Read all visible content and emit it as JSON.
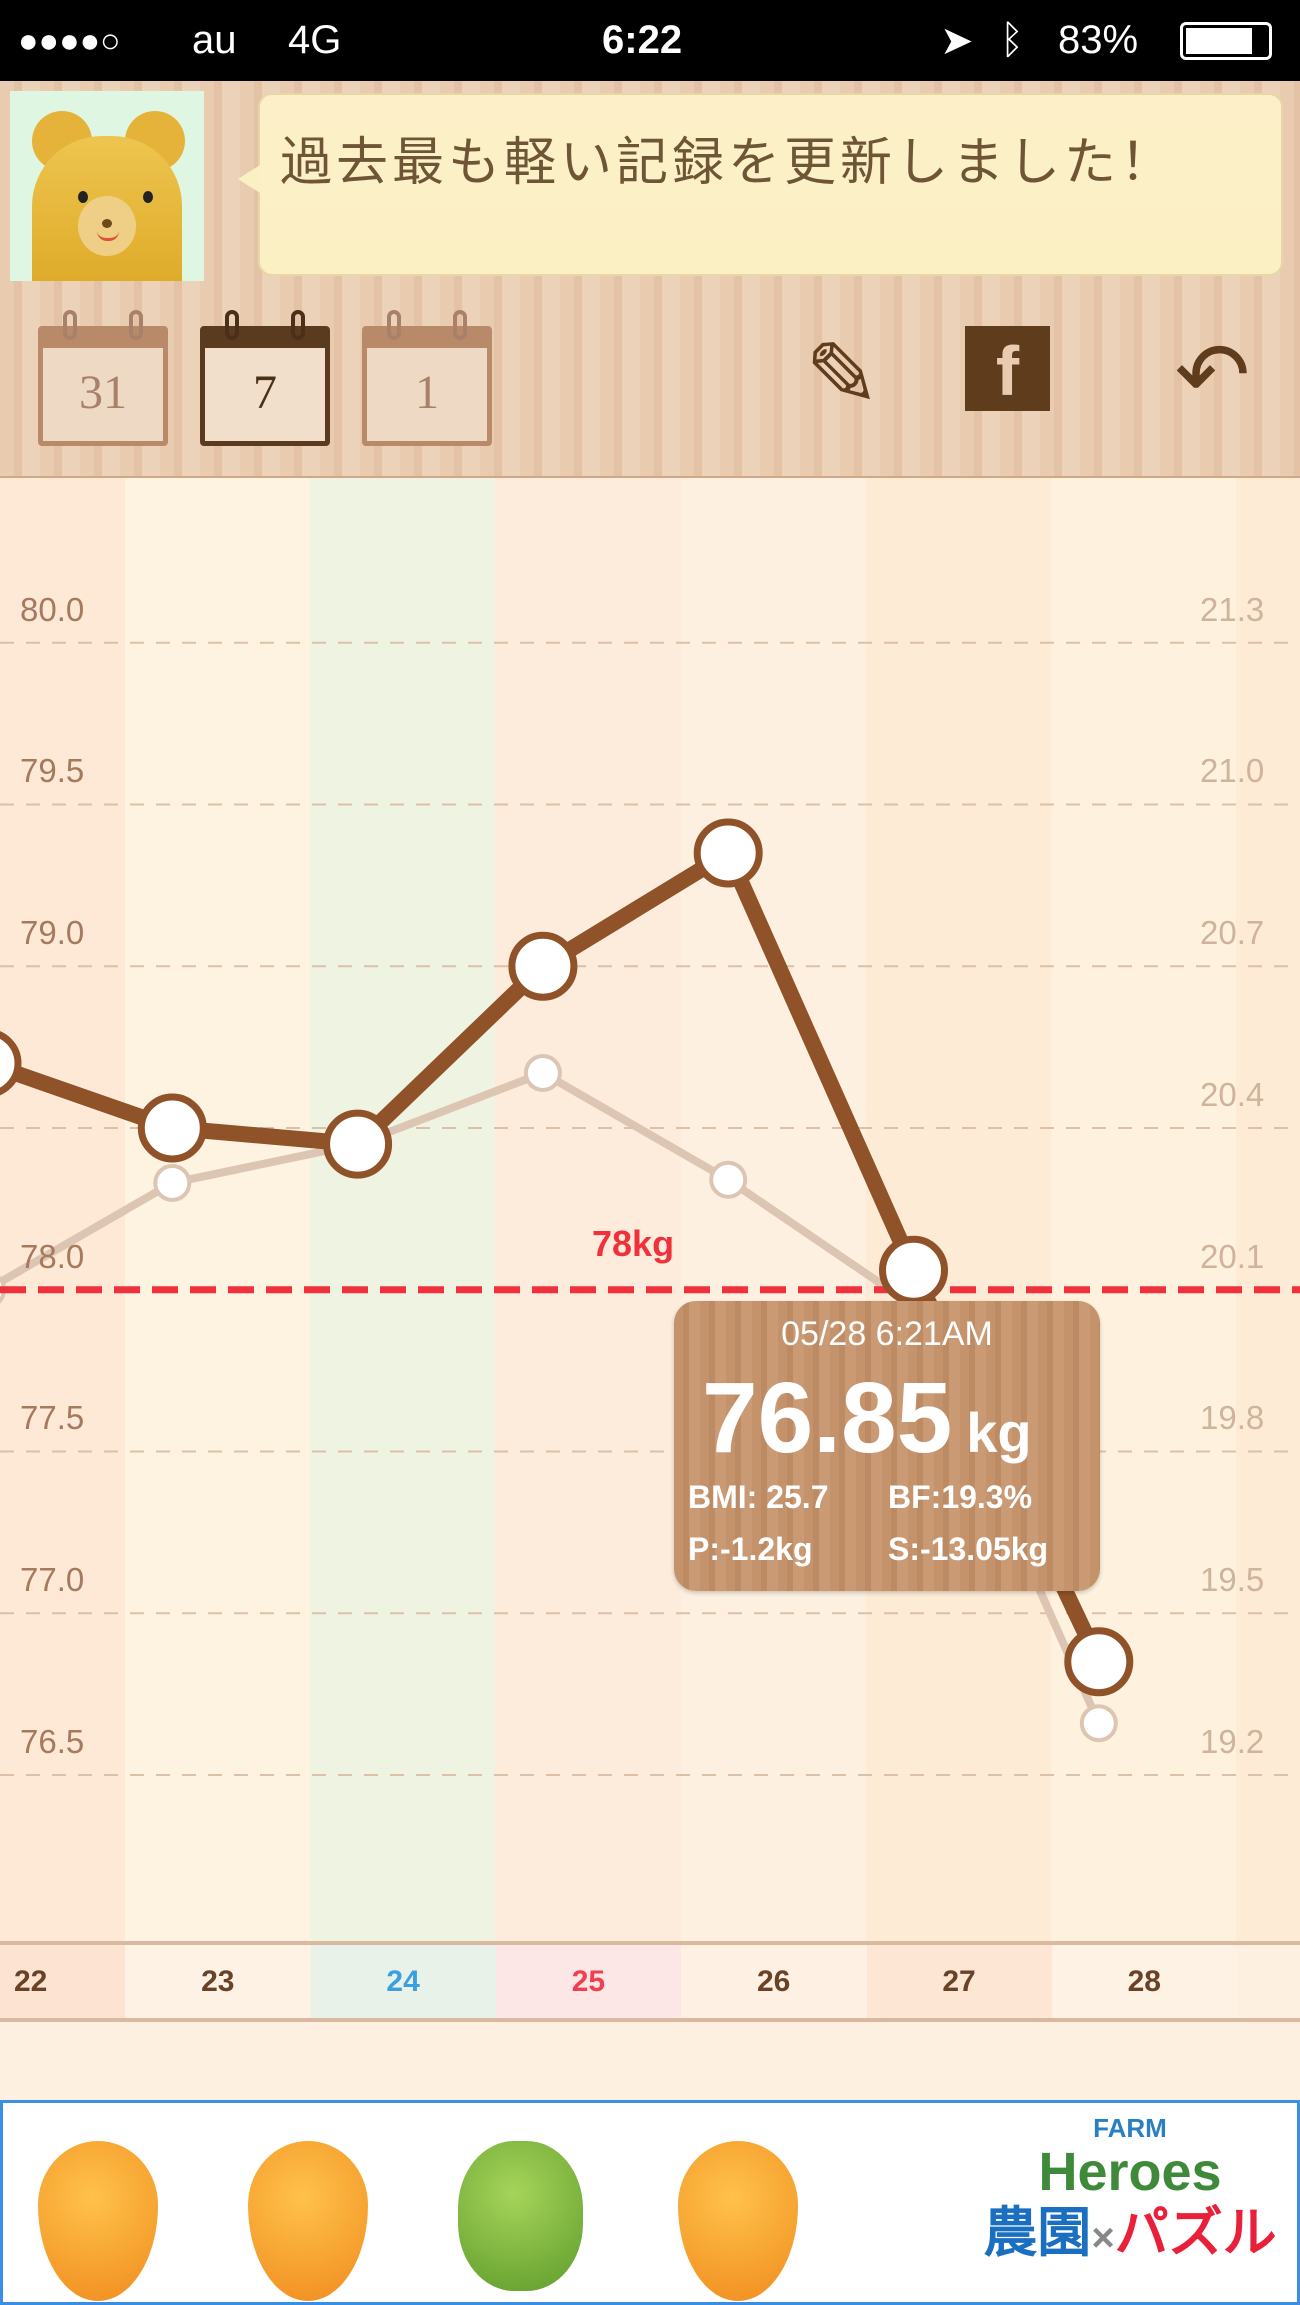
{
  "status_bar": {
    "signal": "●●●●○",
    "carrier": "au",
    "network": "4G",
    "time": "6:22",
    "battery": "83%"
  },
  "header": {
    "message": "過去最も軽い記録を更新しました！",
    "calendar_buttons": [
      {
        "label": "31",
        "active": false
      },
      {
        "label": "7",
        "active": true
      },
      {
        "label": "1",
        "active": false
      }
    ],
    "icons": [
      "edit-icon",
      "facebook-twitter-share-icon",
      "back-arrow-icon"
    ]
  },
  "chart_data": {
    "type": "line",
    "categories": [
      "22",
      "23",
      "24",
      "25",
      "26",
      "27",
      "28"
    ],
    "category_colors": [
      "#6a4228",
      "#6a4228",
      "#3aa0e0",
      "#f04050",
      "#6a4228",
      "#6a4228",
      "#6a4228"
    ],
    "series": [
      {
        "values": [
          78.7,
          78.5,
          78.45,
          79.0,
          79.35,
          78.06,
          76.85
        ],
        "color": "#8f5229"
      },
      {
        "values": [
          78.0,
          78.33,
          78.45,
          78.67,
          78.34,
          77.95,
          76.66
        ],
        "color": "#dcc5b2"
      }
    ],
    "y_left": {
      "ticks": [
        "80.0",
        "79.5",
        "79.0",
        "78.5",
        "78.0",
        "77.5",
        "77.0",
        "76.5"
      ],
      "range": [
        76.2,
        80.2
      ]
    },
    "y_right": {
      "ticks": [
        "21.3",
        "21.0",
        "20.7",
        "20.4",
        "20.1",
        "19.8",
        "19.5",
        "19.2"
      ]
    },
    "reference_line": {
      "value": 78.0,
      "label": "78kg",
      "color": "#f0303a"
    },
    "grid": true
  },
  "tooltip": {
    "datetime": "05/28 6:21AM",
    "weight": "76.85",
    "unit": "kg",
    "bmi": "BMI: 25.7",
    "bf": "BF:19.3%",
    "prev": "P:-1.2kg",
    "start": "S:-13.05kg"
  },
  "ad": {
    "brand_top": "FARM",
    "brand": "Heroes",
    "tagline_a": "農園",
    "tagline_x": "×",
    "tagline_b": "パズル"
  }
}
